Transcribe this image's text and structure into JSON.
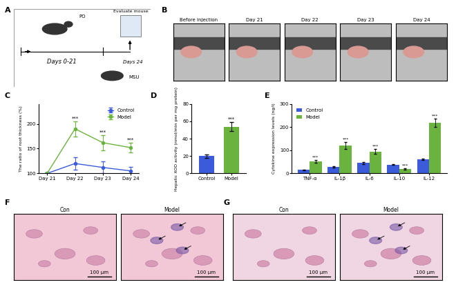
{
  "schematic": {
    "label": "A",
    "texts": {
      "oral": "PO",
      "evaluate": "Evaluate mouse",
      "period": "Days 0-21",
      "end": "Days 24",
      "injection": "MSU"
    }
  },
  "photos": {
    "label": "B",
    "captions": [
      "Before injection",
      "Day 21",
      "Day 22",
      "Day 23",
      "Day 24"
    ]
  },
  "chart_data": [
    {
      "label": "C",
      "type": "line",
      "categories": [
        "Day 21",
        "Day 22",
        "Day 23",
        "Day 24"
      ],
      "y_label": "The ratio of root thickness (%)",
      "ylim": [
        100,
        240
      ],
      "yticks": [
        100,
        150,
        200
      ],
      "legend": "upper right",
      "marker": "o",
      "series": [
        {
          "name": "Control",
          "color": "#3b5bdb",
          "values": [
            100,
            120,
            112,
            105
          ],
          "errors": [
            2,
            12,
            12,
            8
          ]
        },
        {
          "name": "Model",
          "color": "#6bb33f",
          "values": [
            100,
            190,
            162,
            152
          ],
          "errors": [
            2,
            15,
            15,
            10
          ]
        }
      ],
      "annotations": [
        {
          "category": "Day 22",
          "series": "Model",
          "text": "***"
        },
        {
          "category": "Day 23",
          "series": "Model",
          "text": "***"
        },
        {
          "category": "Day 24",
          "series": "Model",
          "text": "***"
        }
      ]
    },
    {
      "label": "D",
      "type": "bar",
      "categories": [
        "Control",
        "Model"
      ],
      "values": [
        20,
        54
      ],
      "errors": [
        2,
        5
      ],
      "colors": [
        "#3b5bdb",
        "#6bb33f"
      ],
      "y_label": "Hepatic XOD activity (nmol/min per mg protein)",
      "ylim": [
        0,
        80
      ],
      "yticks": [
        0,
        20,
        40,
        60,
        80
      ],
      "annotations": [
        {
          "category": "Model",
          "text": "***"
        }
      ]
    },
    {
      "label": "E",
      "type": "bar",
      "categories": [
        "TNF-α",
        "IL-1β",
        "IL-6",
        "IL-10",
        "IL-12"
      ],
      "y_label": "Cytokine expression levels (ng/l)",
      "ylim": [
        0,
        300
      ],
      "yticks": [
        0,
        100,
        200,
        300
      ],
      "legend": "upper left",
      "series": [
        {
          "name": "Control",
          "color": "#3b5bdb",
          "values": [
            15,
            28,
            45,
            38,
            60
          ],
          "errors": [
            2,
            3,
            5,
            2,
            3
          ]
        },
        {
          "name": "Model",
          "color": "#6bb33f",
          "values": [
            52,
            120,
            95,
            18,
            220
          ],
          "errors": [
            5,
            15,
            10,
            3,
            18
          ]
        }
      ],
      "annotations": [
        {
          "category": "TNF-α",
          "series": "Model",
          "text": "***"
        },
        {
          "category": "IL-1β",
          "series": "Model",
          "text": "***"
        },
        {
          "category": "IL-6",
          "series": "Model",
          "text": "***"
        },
        {
          "category": "IL-10",
          "series": "Model",
          "text": "***"
        },
        {
          "category": "IL-12",
          "series": "Model",
          "text": "***"
        }
      ]
    }
  ],
  "histology": [
    {
      "label": "F",
      "images": [
        {
          "title": "Con",
          "scale_bar": "100 μm"
        },
        {
          "title": "Model",
          "scale_bar": "100 μm"
        }
      ]
    },
    {
      "label": "G",
      "images": [
        {
          "title": "Con",
          "scale_bar": "100 μm"
        },
        {
          "title": "Model",
          "scale_bar": "100 μm"
        }
      ]
    }
  ]
}
